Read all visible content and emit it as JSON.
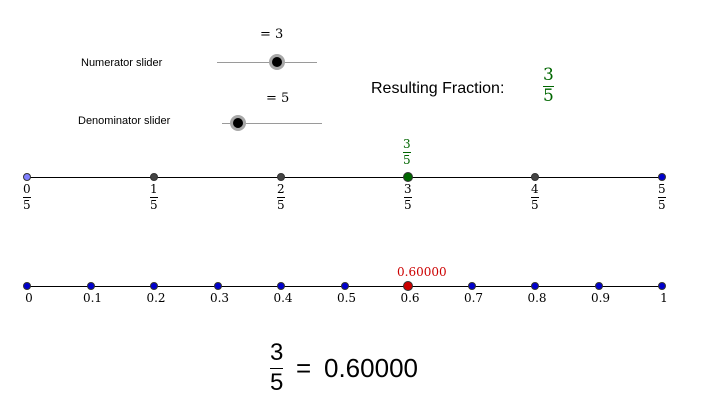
{
  "numerator_slider": {
    "label": "Numerator slider",
    "value_text": "= 3",
    "value": 3
  },
  "denominator_slider": {
    "label": "Denominator slider",
    "value_text": "= 5",
    "value": 5
  },
  "result": {
    "label": "Resulting Fraction:",
    "numerator": "3",
    "denominator": "5",
    "color": "#006600"
  },
  "fraction_line": {
    "ticks": [
      {
        "num": "0",
        "den": "5"
      },
      {
        "num": "1",
        "den": "5"
      },
      {
        "num": "2",
        "den": "5"
      },
      {
        "num": "3",
        "den": "5"
      },
      {
        "num": "4",
        "den": "5"
      },
      {
        "num": "5",
        "den": "5"
      }
    ],
    "marker": {
      "num": "3",
      "den": "5"
    },
    "marker_color": "#006600",
    "start_point_color": "#8080ff",
    "point_color": "#444444"
  },
  "decimal_line": {
    "ticks": [
      "0",
      "0.1",
      "0.2",
      "0.3",
      "0.4",
      "0.5",
      "0.6",
      "0.7",
      "0.8",
      "0.9",
      "1"
    ],
    "marker_value": 0.6,
    "marker_label": "0.60000",
    "marker_color": "#cc0000",
    "point_color": "#0000cc"
  },
  "equation": {
    "numerator": "3",
    "denominator": "5",
    "equals": "=",
    "decimal": "0.60000"
  }
}
